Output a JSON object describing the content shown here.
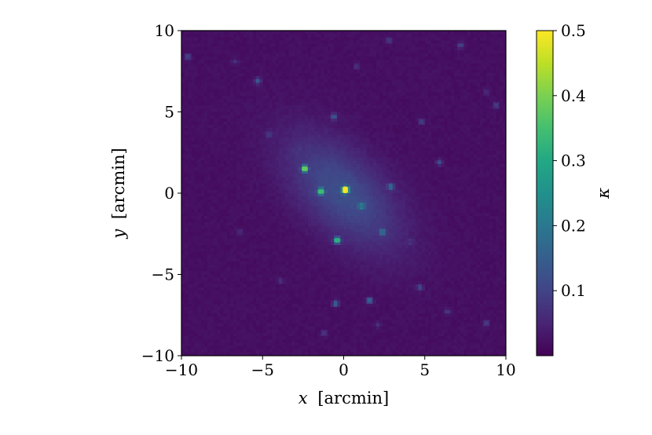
{
  "chart_data": {
    "type": "heatmap",
    "title": "",
    "xlabel": {
      "var": "x",
      "unit": "[arcmin]"
    },
    "ylabel": {
      "var": "y",
      "unit": "[arcmin]"
    },
    "xlim": [
      -10,
      10
    ],
    "ylim": [
      -10,
      10
    ],
    "x_ticks": [
      -10,
      -5,
      0,
      5,
      10
    ],
    "y_ticks": [
      -10,
      -5,
      0,
      5,
      10
    ],
    "x_tick_labels": [
      "−10",
      "−5",
      "0",
      "5",
      "10"
    ],
    "y_tick_labels": [
      "−10",
      "−5",
      "0",
      "5",
      "10"
    ],
    "colormap": "viridis",
    "colorbar": {
      "label": "κ",
      "range": [
        0.0,
        0.5
      ],
      "ticks": [
        0.1,
        0.2,
        0.3,
        0.4,
        0.5
      ],
      "tick_labels": [
        "0.1",
        "0.2",
        "0.3",
        "0.4",
        "0.5"
      ]
    },
    "background_kappa": 0.02,
    "halo": {
      "center": [
        0.0,
        0.0
      ],
      "peak_kappa": 0.1,
      "orientation_deg": 135
    },
    "peaks": [
      {
        "x": 0.1,
        "y": 0.2,
        "kappa": 0.5
      },
      {
        "x": -2.4,
        "y": 1.5,
        "kappa": 0.38
      },
      {
        "x": -1.4,
        "y": 0.1,
        "kappa": 0.34
      },
      {
        "x": -0.4,
        "y": -2.9,
        "kappa": 0.32
      },
      {
        "x": 1.1,
        "y": -0.8,
        "kappa": 0.18
      },
      {
        "x": 2.4,
        "y": -2.4,
        "kappa": 0.16
      },
      {
        "x": 2.9,
        "y": 0.4,
        "kappa": 0.16
      },
      {
        "x": 1.6,
        "y": -6.6,
        "kappa": 0.16
      },
      {
        "x": -0.5,
        "y": -6.8,
        "kappa": 0.15
      },
      {
        "x": -5.3,
        "y": 6.9,
        "kappa": 0.14
      },
      {
        "x": -0.6,
        "y": 4.7,
        "kappa": 0.13
      },
      {
        "x": 5.9,
        "y": 1.9,
        "kappa": 0.12
      },
      {
        "x": 4.7,
        "y": -5.8,
        "kappa": 0.11
      },
      {
        "x": 7.2,
        "y": 9.1,
        "kappa": 0.1
      },
      {
        "x": -9.6,
        "y": 8.4,
        "kappa": 0.1
      },
      {
        "x": 4.8,
        "y": 4.4,
        "kappa": 0.09
      },
      {
        "x": 9.4,
        "y": 5.4,
        "kappa": 0.09
      },
      {
        "x": 8.8,
        "y": -8.0,
        "kappa": 0.09
      },
      {
        "x": -1.2,
        "y": -8.6,
        "kappa": 0.08
      },
      {
        "x": 6.4,
        "y": -7.3,
        "kappa": 0.08
      },
      {
        "x": -4.6,
        "y": 3.6,
        "kappa": 0.08
      },
      {
        "x": 2.8,
        "y": 9.4,
        "kappa": 0.08
      },
      {
        "x": -6.7,
        "y": 8.1,
        "kappa": 0.07
      },
      {
        "x": 0.8,
        "y": 7.8,
        "kappa": 0.07
      },
      {
        "x": -3.9,
        "y": -5.4,
        "kappa": 0.07
      },
      {
        "x": 2.1,
        "y": -8.1,
        "kappa": 0.07
      },
      {
        "x": -6.4,
        "y": -2.4,
        "kappa": 0.06
      },
      {
        "x": 8.8,
        "y": 6.2,
        "kappa": 0.06
      },
      {
        "x": 4.1,
        "y": -3.0,
        "kappa": 0.06
      },
      {
        "x": -2.9,
        "y": 2.7,
        "kappa": 0.06
      }
    ]
  }
}
